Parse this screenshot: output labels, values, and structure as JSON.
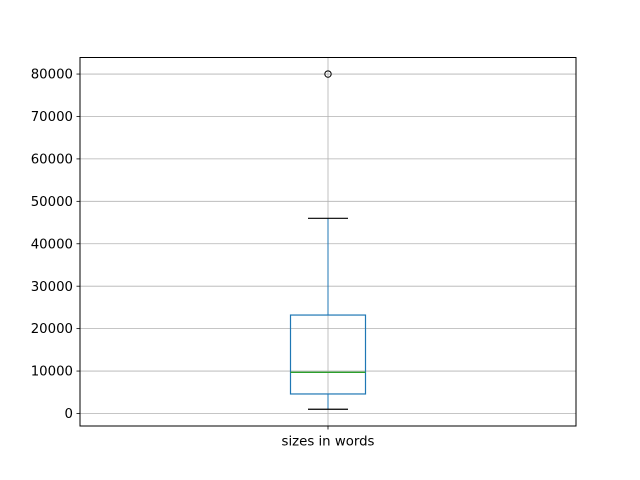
{
  "figure": {
    "background": "#ffffff"
  },
  "chart_data": {
    "type": "boxplot",
    "title": "",
    "xlabel": "sizes in words",
    "ylabel": "",
    "grid": true,
    "legend_position": "none",
    "ylim": [
      -2950,
      83900
    ],
    "yticks": [
      0,
      10000,
      20000,
      30000,
      40000,
      50000,
      60000,
      70000,
      80000
    ],
    "ytick_labels": [
      "0",
      "10000",
      "20000",
      "30000",
      "40000",
      "50000",
      "60000",
      "70000",
      "80000"
    ],
    "categories": [
      "sizes in words"
    ],
    "series": [
      {
        "name": "sizes in words",
        "whisker_low": 1000,
        "q1": 4600,
        "median": 9700,
        "q3": 23200,
        "whisker_high": 46000,
        "outliers": [
          80000
        ]
      }
    ],
    "colors": {
      "box": "#1f77b4",
      "whisker": "#1f77b4",
      "cap": "#000000",
      "median": "#2ca02c",
      "flier_edge": "#000000",
      "grid": "#b2b2b2",
      "spine": "#000000",
      "tick": "#000000",
      "tick_label": "#000000"
    }
  }
}
